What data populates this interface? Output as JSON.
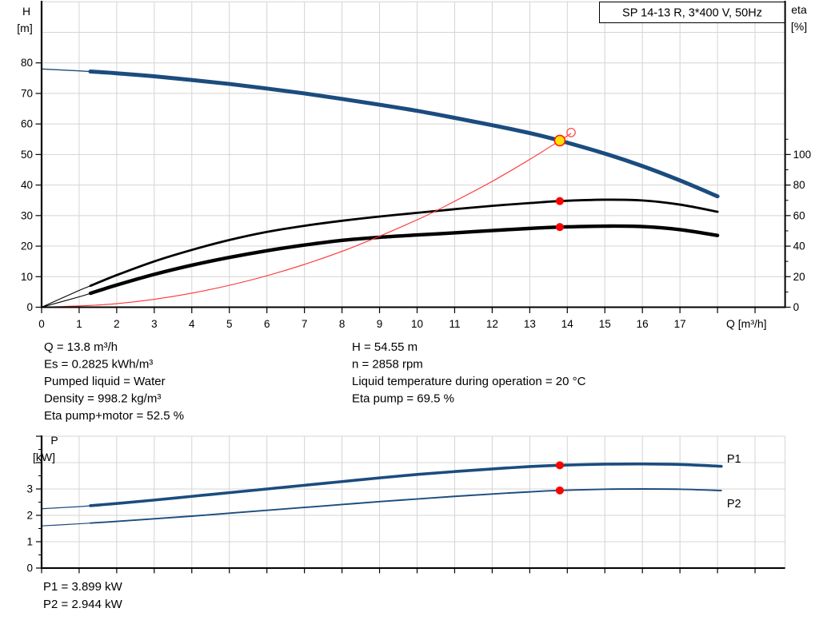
{
  "window": {
    "background": "#ffffff"
  },
  "colors": {
    "curve_blue": "#1b4c7e",
    "series_label_blue": "#2257a4",
    "marker_red": "#ff0000",
    "system_curve_red": "#ff3333",
    "duty_yellow": "#ffe200",
    "grid_gray": "#d4d4d4",
    "axis_black": "#000000",
    "text_black": "#000000"
  },
  "chart_data": [
    {
      "type": "line",
      "title": "SP 14-13 R, 3*400 V, 50Hz",
      "x_axis": {
        "label": "Q [m³/h]",
        "min": 0,
        "max": 19.8,
        "tick_step": 1,
        "labeled_ticks": [
          0,
          1,
          2,
          3,
          4,
          5,
          6,
          7,
          8,
          9,
          10,
          11,
          12,
          13,
          14,
          15,
          16,
          17
        ]
      },
      "y_axis_left": {
        "label": "H",
        "unit": "[m]",
        "min": 0,
        "max": 100,
        "grid_step": 10,
        "labeled_ticks": [
          0,
          10,
          20,
          30,
          40,
          50,
          60,
          70,
          80
        ]
      },
      "y_axis_right": {
        "label": "eta",
        "unit": "[%]",
        "min": 0,
        "max": 200,
        "labeled_ticks": [
          0,
          20,
          40,
          60,
          80,
          100
        ],
        "minor_ticks": [
          10,
          30,
          50,
          70,
          90,
          110
        ]
      },
      "grid": true,
      "series": [
        {
          "name": "pump-curve",
          "legend": "H(Q) pump curve",
          "axis": "left",
          "color": "#1b4c7e",
          "width": 5,
          "width_thin": 1.4,
          "thin_until": 1.3,
          "x": [
            0,
            1,
            2,
            3,
            4,
            5,
            6,
            7,
            8,
            9,
            10,
            11,
            12,
            13,
            13.8,
            15,
            16,
            17,
            18
          ],
          "y": [
            78,
            77.4,
            76.6,
            75.6,
            74.4,
            73.1,
            71.6,
            70,
            68.2,
            66.3,
            64.3,
            62,
            59.6,
            57,
            54.55,
            50.3,
            46.2,
            41.5,
            36.3
          ]
        },
        {
          "name": "eta-pump",
          "legend": "Eta pump",
          "axis": "right",
          "color": "#000000",
          "width": 2.8,
          "width_thin": 1.1,
          "thin_until": 1.3,
          "x": [
            0,
            1,
            2,
            3,
            4,
            5,
            6,
            7,
            8,
            9,
            10,
            11,
            12,
            13,
            13.8,
            15,
            16,
            17,
            18
          ],
          "y": [
            0,
            11,
            21,
            30,
            37.5,
            44,
            49.3,
            53.3,
            56.6,
            59.4,
            61.8,
            64.2,
            66.4,
            68.2,
            69.5,
            70.4,
            69.9,
            67.2,
            62.5
          ]
        },
        {
          "name": "eta-pump-motor",
          "legend": "Eta pump+motor",
          "axis": "right",
          "color": "#000000",
          "width": 4.4,
          "width_thin": 1.1,
          "thin_until": 1.3,
          "x": [
            0,
            1,
            2,
            3,
            4,
            5,
            6,
            7,
            8,
            9,
            10,
            11,
            12,
            13,
            13.8,
            15,
            16,
            17,
            18
          ],
          "y": [
            0,
            6.8,
            14.5,
            21.5,
            27.5,
            32.6,
            37,
            40.7,
            43.8,
            45.8,
            47.3,
            48.7,
            50.2,
            51.6,
            52.5,
            53.1,
            52.8,
            50.8,
            47
          ]
        },
        {
          "name": "system-curve",
          "legend": "System curve to duty point",
          "axis": "left",
          "color": "#ff3333",
          "width": 1.1,
          "x": [
            0,
            2,
            4,
            6,
            8,
            10,
            11,
            12,
            13,
            13.8,
            14.1
          ],
          "y": [
            0,
            1.15,
            4.6,
            10.3,
            18.3,
            28.6,
            34.7,
            41.2,
            48.4,
            54.55,
            56.9
          ]
        }
      ],
      "markers": [
        {
          "name": "duty-point",
          "axis": "left",
          "x": 13.8,
          "y": 54.55,
          "r": 6.5,
          "fill": "#ffe200",
          "stroke": "#ff1a1a",
          "stroke_width": 1.6,
          "interactable": true
        },
        {
          "name": "requested-point-circle",
          "axis": "left",
          "x": 14.1,
          "y": 57.2,
          "r": 5.2,
          "fill": "none",
          "stroke": "#ff4d4d",
          "stroke_width": 1.3,
          "interactable": false
        },
        {
          "name": "eta-pump-point",
          "axis": "right",
          "x": 13.8,
          "y": 69.5,
          "r": 5,
          "fill": "#ff0000",
          "stroke": "none",
          "stroke_width": 0,
          "interactable": false
        },
        {
          "name": "eta-pump-motor-point",
          "axis": "right",
          "x": 13.8,
          "y": 52.5,
          "r": 5,
          "fill": "#ff0000",
          "stroke": "none",
          "stroke_width": 0,
          "interactable": false
        }
      ]
    },
    {
      "type": "line",
      "title": "",
      "x_axis": {
        "label": "",
        "min": 0,
        "max": 19.8,
        "tick_step": 1,
        "labeled_ticks": []
      },
      "y_axis_left": {
        "label": "P",
        "unit": "[kW]",
        "min": 0,
        "max": 5,
        "grid_step": 1,
        "labeled_ticks": [
          0,
          1,
          2,
          3
        ],
        "unlabeled_ticks": [
          4,
          5
        ],
        "minor_step": 0.5
      },
      "grid": true,
      "series": [
        {
          "name": "p1-curve",
          "legend": "P1",
          "label": "P1",
          "label_x": 18.25,
          "label_y": 4.0,
          "axis": "left",
          "color": "#1b4c7e",
          "width": 3.6,
          "width_thin": 1.2,
          "thin_until": 1.3,
          "x": [
            0,
            1,
            2,
            3,
            4,
            5,
            6,
            7,
            8,
            9,
            10,
            11,
            12,
            13,
            13.8,
            15,
            16,
            17,
            18.1
          ],
          "y": [
            2.25,
            2.33,
            2.45,
            2.58,
            2.72,
            2.86,
            3.0,
            3.14,
            3.28,
            3.42,
            3.55,
            3.66,
            3.76,
            3.85,
            3.899,
            3.94,
            3.95,
            3.93,
            3.86
          ]
        },
        {
          "name": "p2-curve",
          "legend": "P2",
          "label": "P2",
          "label_x": 18.25,
          "label_y": 2.3,
          "axis": "left",
          "color": "#1b4c7e",
          "width": 1.9,
          "width_thin": 1.2,
          "thin_until": 1.3,
          "x": [
            0,
            1,
            2,
            3,
            4,
            5,
            6,
            7,
            8,
            9,
            10,
            11,
            12,
            13,
            13.8,
            15,
            16,
            17,
            18.1
          ],
          "y": [
            1.6,
            1.68,
            1.77,
            1.87,
            1.97,
            2.08,
            2.19,
            2.3,
            2.41,
            2.52,
            2.62,
            2.72,
            2.81,
            2.89,
            2.944,
            2.99,
            3.0,
            2.99,
            2.94
          ]
        }
      ],
      "markers": [
        {
          "name": "p1-point",
          "axis": "left",
          "x": 13.8,
          "y": 3.899,
          "r": 5,
          "fill": "#ff0000",
          "stroke": "none",
          "stroke_width": 0,
          "interactable": false
        },
        {
          "name": "p2-point",
          "axis": "left",
          "x": 13.8,
          "y": 2.944,
          "r": 5,
          "fill": "#ff0000",
          "stroke": "none",
          "stroke_width": 0,
          "interactable": false
        }
      ]
    }
  ],
  "info_block": {
    "left": [
      "Q = 13.8 m³/h",
      "Es = 0.2825 kWh/m³",
      "Pumped liquid = Water",
      "Density = 998.2 kg/m³",
      "Eta pump+motor = 52.5 %"
    ],
    "right": [
      "H = 54.55 m",
      "n = 2858 rpm",
      "Liquid temperature during operation = 20 °C",
      "Eta pump = 69.5 %"
    ]
  },
  "power_block": {
    "lines": [
      "P1 = 3.899 kW",
      "P2 = 2.944 kW"
    ]
  }
}
